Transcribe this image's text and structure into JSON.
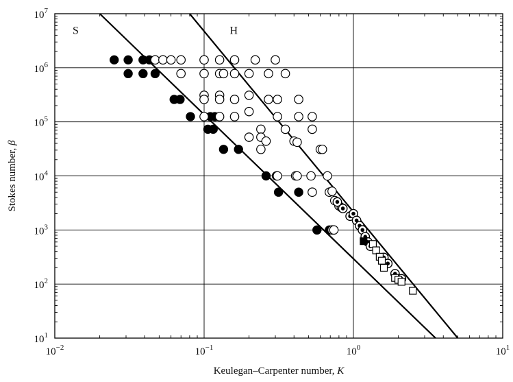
{
  "chart_data": {
    "type": "scatter",
    "xlabel": "Keulegan–Carpenter number, ",
    "xlabel_var": "K",
    "ylabel": "Stokes number, ",
    "ylabel_var": "β",
    "x_scale": "log",
    "y_scale": "log",
    "xlim": [
      0.01,
      10
    ],
    "ylim": [
      10,
      10000000
    ],
    "grid": true,
    "x_ticks": [
      {
        "base": "10",
        "exp": "−2",
        "value": 0.01
      },
      {
        "base": "10",
        "exp": "−1",
        "value": 0.1
      },
      {
        "base": "10",
        "exp": "0",
        "value": 1
      },
      {
        "base": "10",
        "exp": "1",
        "value": 10
      }
    ],
    "y_ticks": [
      {
        "base": "10",
        "exp": "1",
        "value": 10
      },
      {
        "base": "10",
        "exp": "2",
        "value": 100
      },
      {
        "base": "10",
        "exp": "3",
        "value": 1000
      },
      {
        "base": "10",
        "exp": "4",
        "value": 10000
      },
      {
        "base": "10",
        "exp": "5",
        "value": 100000
      },
      {
        "base": "10",
        "exp": "6",
        "value": 1000000
      },
      {
        "base": "10",
        "exp": "7",
        "value": 10000000
      }
    ],
    "lines": [
      {
        "label": "S",
        "points": [
          [
            0.02,
            10000000
          ],
          [
            3.55,
            10
          ]
        ],
        "label_at": [
          0.0138,
          5000000
        ]
      },
      {
        "label": "H",
        "points": [
          [
            0.08,
            10000000
          ],
          [
            5.0,
            10
          ]
        ],
        "label_at": [
          0.158,
          5000000
        ]
      }
    ],
    "series": [
      {
        "marker": "filled-circle",
        "color": "#000000",
        "points": [
          [
            0.025,
            1400000
          ],
          [
            0.031,
            1400000
          ],
          [
            0.039,
            1400000
          ],
          [
            0.043,
            1400000
          ],
          [
            0.031,
            780000
          ],
          [
            0.039,
            780000
          ],
          [
            0.047,
            780000
          ],
          [
            0.063,
            260000
          ],
          [
            0.069,
            260000
          ],
          [
            0.081,
            125000
          ],
          [
            0.11,
            125000
          ],
          [
            0.118,
            125000
          ],
          [
            0.106,
            73000
          ],
          [
            0.115,
            73000
          ],
          [
            0.135,
            31000
          ],
          [
            0.17,
            31000
          ],
          [
            0.26,
            10000
          ],
          [
            0.305,
            10000
          ],
          [
            0.315,
            5000
          ],
          [
            0.43,
            5000
          ],
          [
            0.57,
            1000
          ],
          [
            0.69,
            1000
          ]
        ]
      },
      {
        "marker": "open-circle",
        "color": "#000000",
        "points": [
          [
            0.047,
            1400000
          ],
          [
            0.053,
            1400000
          ],
          [
            0.06,
            1400000
          ],
          [
            0.07,
            1400000
          ],
          [
            0.1,
            1400000
          ],
          [
            0.127,
            1400000
          ],
          [
            0.16,
            1400000
          ],
          [
            0.22,
            1400000
          ],
          [
            0.3,
            1400000
          ],
          [
            0.07,
            780000
          ],
          [
            0.1,
            780000
          ],
          [
            0.127,
            780000
          ],
          [
            0.135,
            780000
          ],
          [
            0.16,
            780000
          ],
          [
            0.2,
            780000
          ],
          [
            0.27,
            780000
          ],
          [
            0.35,
            780000
          ],
          [
            0.1,
            310000
          ],
          [
            0.127,
            310000
          ],
          [
            0.2,
            310000
          ],
          [
            0.1,
            260000
          ],
          [
            0.127,
            260000
          ],
          [
            0.16,
            260000
          ],
          [
            0.27,
            260000
          ],
          [
            0.31,
            260000
          ],
          [
            0.43,
            260000
          ],
          [
            0.2,
            155000
          ],
          [
            0.1,
            125000
          ],
          [
            0.127,
            125000
          ],
          [
            0.16,
            125000
          ],
          [
            0.31,
            125000
          ],
          [
            0.43,
            125000
          ],
          [
            0.53,
            125000
          ],
          [
            0.24,
            73000
          ],
          [
            0.35,
            73000
          ],
          [
            0.53,
            73000
          ],
          [
            0.2,
            52000
          ],
          [
            0.24,
            52000
          ],
          [
            0.26,
            44000
          ],
          [
            0.4,
            44000
          ],
          [
            0.42,
            42000
          ],
          [
            0.24,
            31000
          ],
          [
            0.6,
            31000
          ],
          [
            0.62,
            31000
          ],
          [
            0.31,
            10000
          ],
          [
            0.41,
            10000
          ],
          [
            0.42,
            10000
          ],
          [
            0.52,
            10000
          ],
          [
            0.67,
            10000
          ],
          [
            0.53,
            5000
          ],
          [
            0.69,
            5000
          ],
          [
            0.72,
            5200
          ],
          [
            0.75,
            3500
          ],
          [
            0.8,
            2800
          ],
          [
            0.83,
            2600
          ],
          [
            0.72,
            1000
          ],
          [
            0.74,
            1000
          ]
        ]
      },
      {
        "marker": "dotted-circle",
        "color": "#000000",
        "points": [
          [
            0.78,
            3300
          ],
          [
            0.85,
            2500
          ],
          [
            0.95,
            1800
          ],
          [
            1.0,
            2000
          ],
          [
            1.05,
            1500
          ],
          [
            1.1,
            1200
          ],
          [
            1.15,
            1000
          ],
          [
            1.2,
            750
          ],
          [
            1.25,
            600
          ],
          [
            1.3,
            500
          ],
          [
            1.6,
            310
          ],
          [
            1.7,
            240
          ],
          [
            1.9,
            155
          ],
          [
            2.1,
            125
          ]
        ]
      },
      {
        "marker": "filled-square",
        "color": "#000000",
        "points": [
          [
            1.17,
            620
          ]
        ]
      },
      {
        "marker": "open-square",
        "color": "#000000",
        "points": [
          [
            1.35,
            550
          ],
          [
            1.42,
            420
          ],
          [
            1.5,
            320
          ],
          [
            1.55,
            270
          ],
          [
            1.6,
            200
          ],
          [
            1.9,
            130
          ],
          [
            2.0,
            120
          ],
          [
            2.1,
            110
          ],
          [
            2.5,
            75
          ]
        ]
      }
    ]
  }
}
